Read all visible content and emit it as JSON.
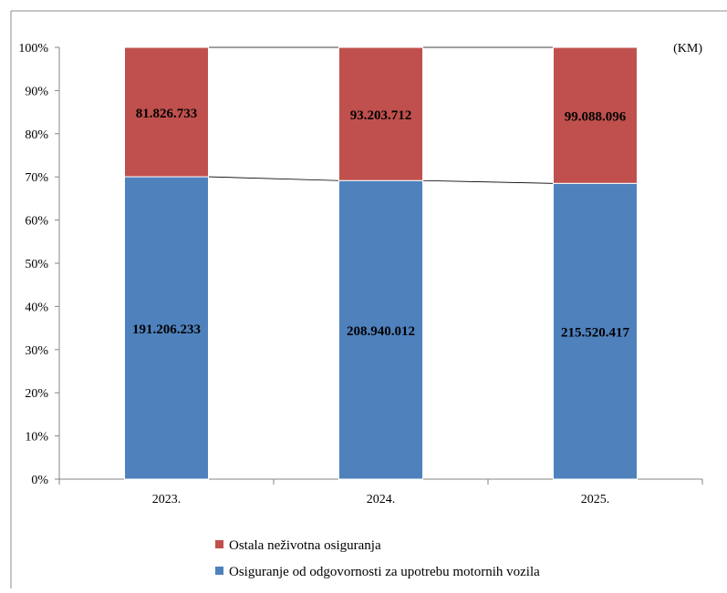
{
  "chart_data": {
    "type": "bar",
    "stacked": "percent",
    "unit_label": "(KM)",
    "categories": [
      "2023.",
      "2024.",
      "2025."
    ],
    "series": [
      {
        "name": "Osiguranje od odgovornosti za upotrebu motornih vozila",
        "color": "#4F81BD",
        "values": [
          191206233,
          208940012,
          215520417
        ],
        "labels": [
          "191.206.233",
          "208.940.012",
          "215.520.417"
        ]
      },
      {
        "name": "Ostala neživotna osiguranja",
        "color": "#C0504D",
        "values": [
          81826733,
          93203712,
          99088096
        ],
        "labels": [
          "81.826.733",
          "93.203.712",
          "99.088.096"
        ]
      }
    ],
    "y_ticks": [
      "0%",
      "10%",
      "20%",
      "30%",
      "40%",
      "50%",
      "60%",
      "70%",
      "80%",
      "90%",
      "100%"
    ],
    "ylim": [
      0,
      100
    ],
    "series_lines": true,
    "grid": false,
    "legend_position": "bottom"
  }
}
